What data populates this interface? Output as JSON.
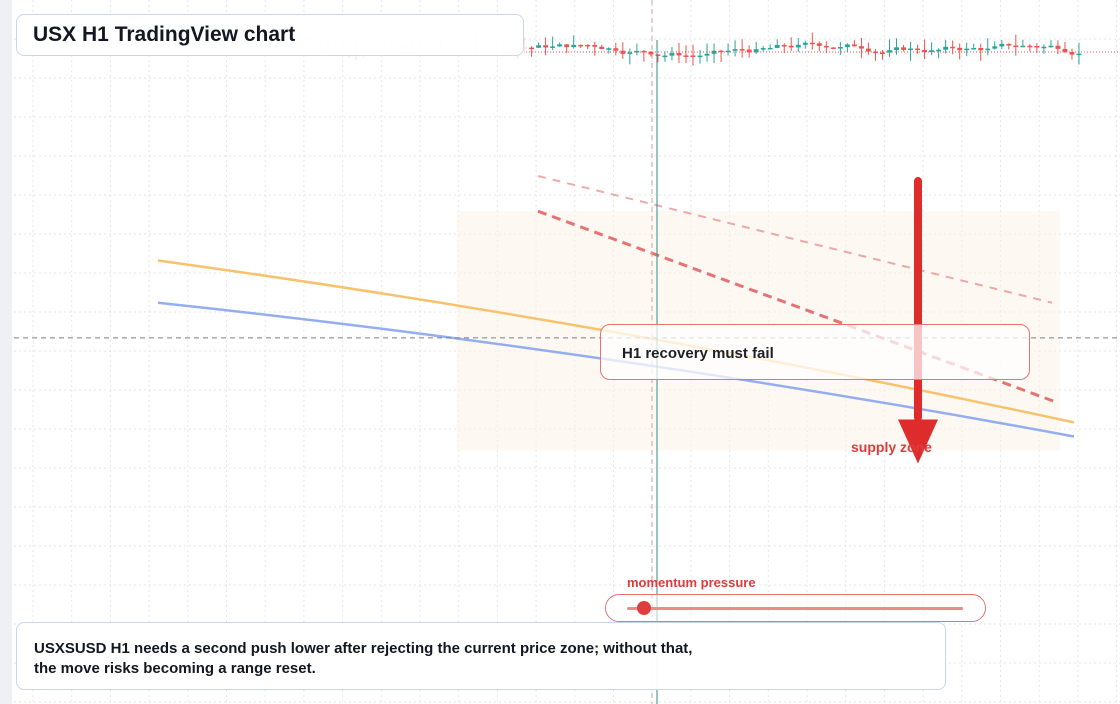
{
  "title": "USX H1 TradingView chart",
  "callout": "H1 recovery must fail",
  "zone_label": "supply zone",
  "momentum": {
    "label": "momentum pressure",
    "level": 0.05
  },
  "note": {
    "line1": "USXSUSD H1 needs a second push lower after rejecting the current price zone; without that,",
    "line2": "the move risks becoming a range reset."
  },
  "colors": {
    "bull": "#26a69a",
    "bear": "#ef5350",
    "ma_fast": "#f7c26b",
    "ma_slow": "#93aef0",
    "projection": "#e57373",
    "arrow": "#de2b2b",
    "grid": "#e3e6ec"
  },
  "chart_data": {
    "type": "candlestick",
    "description_scale": "price axis unlabeled",
    "ylim": [
      0,
      100
    ],
    "grid": true,
    "candles_visible_count": 112,
    "price_range_of_candles": [
      91.5,
      97.5
    ],
    "moving_averages": [
      {
        "points": [
          [
            0,
            63
          ],
          [
            1,
            40
          ]
        ],
        "curve": "concave"
      },
      {
        "points": [
          [
            0,
            57
          ],
          [
            1,
            38
          ]
        ],
        "curve": "concave"
      }
    ],
    "projections": [
      {
        "points": [
          [
            0.42,
            70
          ],
          [
            1,
            43
          ]
        ],
        "style": "dashed"
      },
      {
        "points": [
          [
            0.42,
            75
          ],
          [
            1,
            57
          ]
        ],
        "style": "dashed-light"
      }
    ],
    "crosshair": {
      "x_fraction": 0.64,
      "y_value": 52
    },
    "arrow": {
      "from": 74,
      "to": 37,
      "direction": "down"
    },
    "zone": {
      "x_range": [
        0.4,
        1.0
      ],
      "y_range": [
        36,
        70
      ]
    }
  }
}
